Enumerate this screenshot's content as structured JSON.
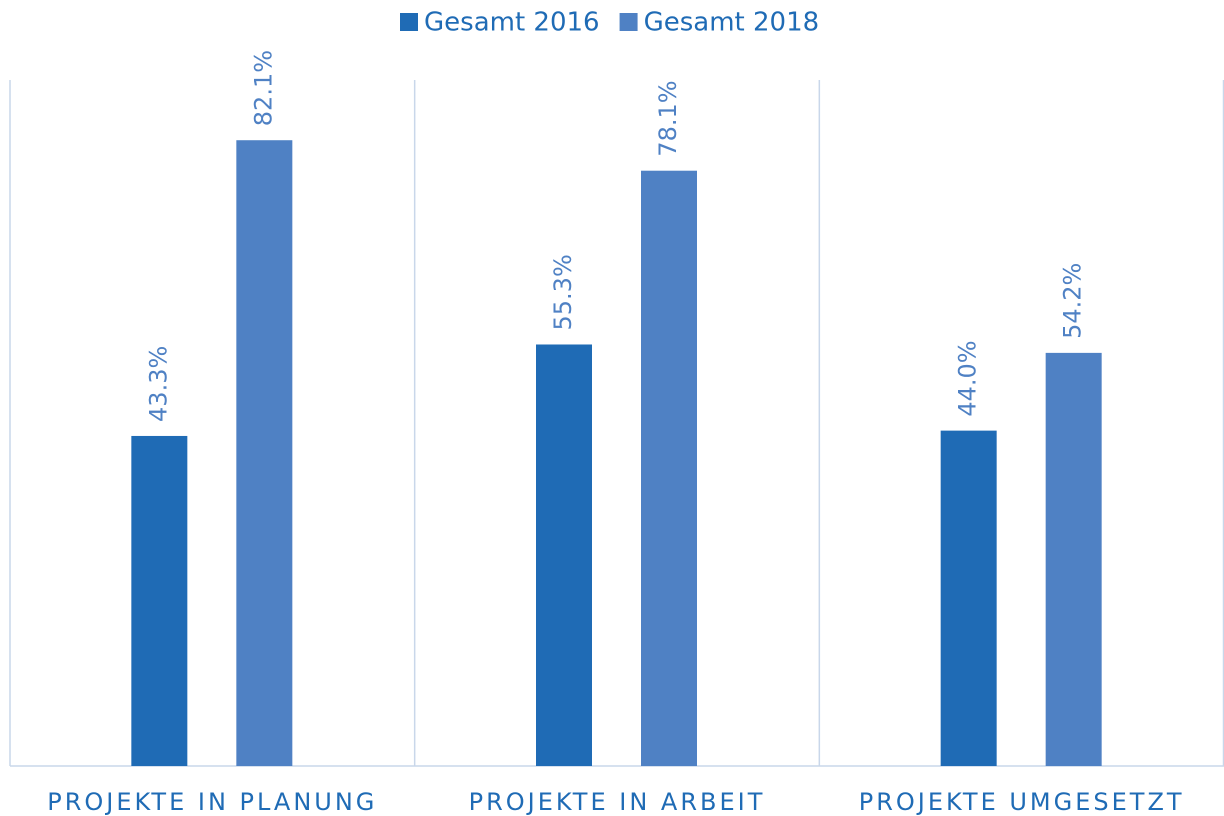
{
  "chart_data": {
    "type": "bar",
    "categories": [
      "PROJEKTE IN PLANUNG",
      "PROJEKTE IN ARBEIT",
      "PROJEKTE UMGESETZT"
    ],
    "series": [
      {
        "name": "Gesamt 2016",
        "color": "#1f6bb5",
        "values": [
          43.3,
          55.3,
          44.0
        ],
        "value_labels": [
          "43.3%",
          "55.3%",
          "44.0%"
        ]
      },
      {
        "name": "Gesamt 2018",
        "color": "#4f81c4",
        "values": [
          82.1,
          78.1,
          54.2
        ],
        "value_labels": [
          "82.1%",
          "78.1%",
          "54.2%"
        ]
      }
    ],
    "ylim": [
      0,
      90
    ],
    "legend": "top"
  }
}
